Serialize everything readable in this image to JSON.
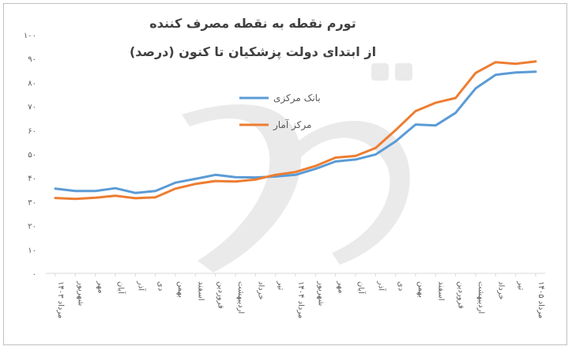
{
  "chart_data": {
    "type": "line",
    "title_line1": "تورم نقطه به نقطه مصرف کننده",
    "title_line2": "از ابتدای دولت پزشکیان تا کنون (درصد)",
    "ylim": [
      0,
      100
    ],
    "yticks": [
      "۰",
      "۱۰",
      "۲۰",
      "۳۰",
      "۴۰",
      "۵۰",
      "۶۰",
      "۷۰",
      "۸۰",
      "۹۰",
      "۱۰۰"
    ],
    "grid": false,
    "legend_position": "center-right",
    "categories": [
      "مرداد ۱۴۰۳",
      "شهریور",
      "مهر",
      "آبان",
      "آذر",
      "دی",
      "بهمن",
      "اسفند",
      "فروردین",
      "اردیبهشت",
      "خرداد",
      "تیر",
      "مرداد ۱۴۰۴",
      "شهریور",
      "مهر",
      "آبان",
      "آذر",
      "دی",
      "بهمن",
      "اسفند",
      "فروردین",
      "اردیبهشت",
      "خرداد",
      "تیر",
      "مرداد ۱۴۰۵"
    ],
    "series": [
      {
        "name": "بانک مرکزی",
        "color": "#5B9BD5",
        "values": [
          35.5,
          34.5,
          34.5,
          35.7,
          33.7,
          34.5,
          38.0,
          39.6,
          41.3,
          40.3,
          40.2,
          40.6,
          41.3,
          43.8,
          46.9,
          47.7,
          49.8,
          55.3,
          62.4,
          62.0,
          67.3,
          77.5,
          83.2,
          84.2,
          84.5
        ]
      },
      {
        "name": "مرکز آمار",
        "color": "#ED7D31",
        "values": [
          31.6,
          31.2,
          31.7,
          32.5,
          31.5,
          31.9,
          35.5,
          37.5,
          38.7,
          38.5,
          39.3,
          41.3,
          42.5,
          45.0,
          48.5,
          49.2,
          52.5,
          60.0,
          68.0,
          71.5,
          73.5,
          84.0,
          88.5,
          87.8,
          88.8
        ]
      }
    ]
  }
}
